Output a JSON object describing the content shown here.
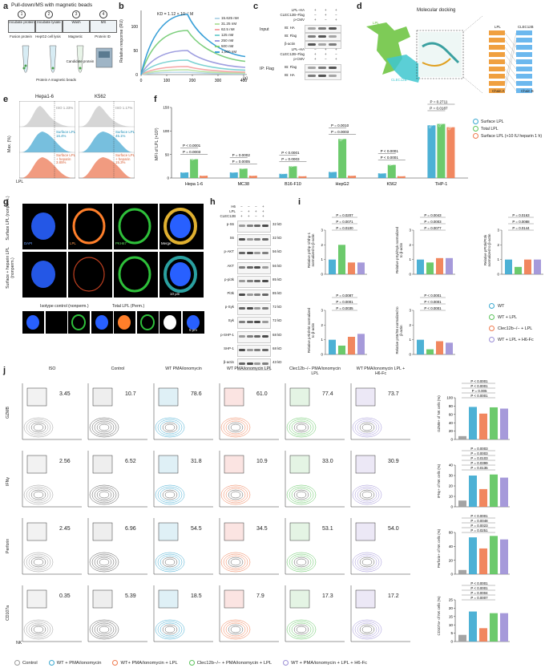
{
  "panel_a": {
    "letter": "a",
    "title": "Pull-down/MS with magnetic beads",
    "steps": [
      {
        "num": "1",
        "top": "Incubate protein",
        "bottom": "Fusion protein"
      },
      {
        "num": "2",
        "top": "Incubate lysate",
        "bottom": "HepG2 cell lysis"
      },
      {
        "num": "3",
        "top": "Wash",
        "bottom": "Magnetic"
      },
      {
        "num": "4",
        "top": "MS",
        "bottom": "Protein ID"
      }
    ],
    "labels": [
      "Protein A magnetic beads",
      "Candidate protein"
    ]
  },
  "panel_b": {
    "letter": "b",
    "kd": "KD = 1.12 × 10⁻⁷ M",
    "ylabel": "Relative response (RU)",
    "xunit": "(s)",
    "legend": [
      "15.625 nM",
      "31.25 nM",
      "62.5 nM",
      "125 nM",
      "250 nM",
      "500 nM",
      "1,000 nM"
    ],
    "legend_colors": [
      "#b7d7e8",
      "#b9e3a5",
      "#f5a6a6",
      "#7fd3d3",
      "#9f9fe0",
      "#7ecf7e",
      "#3aa0d8"
    ]
  },
  "panel_c": {
    "letter": "c",
    "rows": [
      "LPL–HA",
      "CLEC12B–Flag",
      "p-CMV"
    ],
    "input_label": "Input",
    "ip_label": "IP: Flag",
    "blots_input": [
      "IB: HA",
      "IB: Flag",
      "β-actin"
    ],
    "blots_ip": [
      "IB: Flag",
      "IB: HA"
    ],
    "signs_top": [
      [
        "+",
        "+",
        "+"
      ],
      [
        "−",
        "+",
        "−"
      ],
      [
        "+",
        "−",
        "+"
      ]
    ],
    "signs_bottom": [
      [
        "−",
        "+",
        "+"
      ],
      [
        "+",
        "+",
        "−"
      ],
      [
        "+",
        "−",
        "+"
      ]
    ]
  },
  "panel_d": {
    "letter": "d",
    "title": "Molecular docking",
    "labels": [
      "LPL",
      "CLEC12B",
      "Chain A",
      "Chain B"
    ]
  },
  "panel_e": {
    "letter": "e",
    "cells": [
      "Hepa1-6",
      "K562"
    ],
    "ylabel": "Max. (%)",
    "xlabel": "LPL",
    "iso": [
      "ISO 1.23%",
      "ISO 1.17%"
    ],
    "surface": [
      "Surface LPL 16.4%",
      "Surface LPL 45.1%"
    ],
    "heparin": [
      "Surface LPL + heparin 3.85%",
      "Surface LPL + heparin 15.3%"
    ]
  },
  "panel_f": {
    "letter": "f",
    "ylabel": "MFI of LPL (×10²)",
    "legend": [
      "Surface LPL",
      "Total LPL",
      "Surface LPL (+10 IU heparin 1 h)"
    ]
  },
  "panel_g": {
    "letter": "g",
    "rows": [
      "Surface LPL (nonperm.)",
      "Surface + heparin LPL (nonperm.)"
    ],
    "channels": [
      "DAPI",
      "LPL",
      "PKH67",
      "Merge"
    ],
    "scale": "10 μm",
    "scale2": "5 μm",
    "bottom_label": "Isotype control (nonperm.)",
    "bottom_label2": "Total LPL (Perm.)"
  },
  "panel_h": {
    "letter": "h",
    "conds": [
      "H6",
      "LPL",
      "CLEC12B"
    ],
    "blots": [
      "p-S6",
      "S6",
      "p-AKT",
      "AKT",
      "p-pi3k",
      "Pi3k",
      "p-Syk",
      "Syk",
      "p-SHP-1",
      "SHP-1",
      "β-actin"
    ],
    "kda": [
      "32 kD",
      "32 kD",
      "56 kD",
      "56 kD",
      "85 kD",
      "85 kD",
      "72 kD",
      "72 kD",
      "68 kD",
      "68 kD",
      "43 kD"
    ]
  },
  "panel_i": {
    "letter": "i",
    "ylabels": [
      "Relative pShp-1/Shp-1 normalized to β-actin",
      "Relative pSyk/Syk normalized to β-actin",
      "Relative pPI3k/PI3k normalized to β-actin",
      "Relative pAkt/Akt normalized to β-actin",
      "Relative pS6/S6 normalized to β-actin"
    ],
    "legend": [
      "WT",
      "WT + LPL",
      "Clec12b−/− + LPL",
      "WT + LPL + H6-Fc"
    ]
  },
  "panel_j": {
    "letter": "j",
    "col_headers": [
      "ISO",
      "Control",
      "WT PMA/ionomycin",
      "WT PMA/ionomycin LPL",
      "Clec12b−/− PMA/ionomycin LPL",
      "WT PMA/ionomycin LPL + H6-Fc"
    ],
    "row_labels": [
      "GZMB",
      "IFNγ",
      "Perforin",
      "CD107a"
    ],
    "xlabel": "NK",
    "values": [
      [
        "3.45",
        "10.7",
        "78.6",
        "61.0",
        "77.4",
        "73.7"
      ],
      [
        "2.56",
        "6.52",
        "31.8",
        "10.9",
        "33.0",
        "30.9"
      ],
      [
        "2.45",
        "6.96",
        "54.5",
        "34.5",
        "53.1",
        "54.0"
      ],
      [
        "0.35",
        "5.39",
        "18.5",
        "7.9",
        "17.3",
        "17.2"
      ]
    ],
    "bar_ylabels": [
      "GZMB+ of NK cells (%)",
      "IFNγ+ of NK cells (%)",
      "Perforin+ of NK cells (%)",
      "CD107a+ of NK cells (%)"
    ],
    "legend": [
      "Control",
      "WT + PMA/ionomycin",
      "WT+ PMA/ionomycin + LPL",
      "Clec12b−/− + PMA/ionomycin + LPL",
      "WT + PMA/ionomycin + LPL + H6-Fc"
    ]
  },
  "colors": {
    "blue": "#3aa8d0",
    "green": "#5cc45c",
    "orange": "#ef7a4e",
    "purple": "#9c8fd6",
    "gray": "#9a9a9a"
  },
  "chart_data": [
    {
      "type": "bar",
      "panel": "f",
      "categories": [
        "Hepa 1-6",
        "MC38",
        "B16-F10",
        "HepG2",
        "K562",
        "THP-1"
      ],
      "series": [
        {
          "name": "Surface LPL",
          "values": [
            12,
            12,
            9,
            13,
            10,
            112
          ]
        },
        {
          "name": "Total LPL",
          "values": [
            40,
            20,
            25,
            83,
            28,
            115
          ]
        },
        {
          "name": "Surface LPL (+10 IU heparin 1 h)",
          "values": [
            5,
            5,
            4,
            5,
            4,
            108
          ]
        }
      ],
      "ylim": [
        0,
        150
      ],
      "yticks": [
        0,
        50,
        100,
        150
      ],
      "pvals": [
        [
          "P = 0.0003",
          "P < 0.0001"
        ],
        [
          "P = 0.0005",
          "P = 0.0002"
        ],
        [
          "P = 0.0003",
          "P < 0.0001"
        ],
        [
          "P = 0.0003",
          "P = 0.0010"
        ],
        [
          "P < 0.0001",
          "P < 0.0001"
        ],
        [
          "P = 0.2711",
          "P = 0.0187"
        ]
      ]
    },
    {
      "type": "bar",
      "panel": "j-GZMB",
      "categories": [
        "Control",
        "WT+PMA",
        "WT+PMA+LPL",
        "Clec12b+PMA+LPL",
        "WT+PMA+LPL+H6"
      ],
      "values": [
        8,
        78,
        62,
        77,
        74
      ],
      "ylim": [
        0,
        100
      ],
      "yticks": [
        0,
        20,
        40,
        60,
        80,
        100
      ],
      "pvals": [
        "P < 0.0001",
        "P < 0.0001",
        "P = 0.005",
        "P < 0.0001"
      ]
    },
    {
      "type": "bar",
      "panel": "j-IFNg",
      "categories": [
        "Control",
        "WT+PMA",
        "WT+PMA+LPL",
        "Clec12b+PMA+LPL",
        "WT+PMA+LPL+H6"
      ],
      "values": [
        6,
        30,
        17,
        31,
        28
      ],
      "ylim": [
        0,
        40
      ],
      "yticks": [
        0,
        10,
        20,
        30,
        40
      ],
      "pvals": [
        "P = 0.0003",
        "P = 0.0003",
        "P = 0.0103",
        "P = 0.0399",
        "P = 0.0135"
      ]
    },
    {
      "type": "bar",
      "panel": "j-Perforin",
      "categories": [
        "Control",
        "WT+PMA",
        "WT+PMA+LPL",
        "Clec12b+PMA+LPL",
        "WT+PMA+LPL+H6"
      ],
      "values": [
        6,
        53,
        37,
        55,
        50
      ],
      "ylim": [
        0,
        60
      ],
      "yticks": [
        0,
        20,
        40,
        60
      ],
      "pvals": [
        "P < 0.0001",
        "P = 0.0048",
        "P = 0.0023",
        "P = 0.0251"
      ]
    },
    {
      "type": "bar",
      "panel": "j-CD107a",
      "categories": [
        "Control",
        "WT+PMA",
        "WT+PMA+LPL",
        "Clec12b+PMA+LPL",
        "WT+PMA+LPL+H6"
      ],
      "values": [
        4,
        18,
        8,
        17,
        17
      ],
      "ylim": [
        0,
        25
      ],
      "yticks": [
        0,
        5,
        10,
        15,
        20,
        25
      ],
      "pvals": [
        "P < 0.0001",
        "P < 0.0001",
        "P = 0.0004",
        "P = 0.0007"
      ]
    }
  ]
}
